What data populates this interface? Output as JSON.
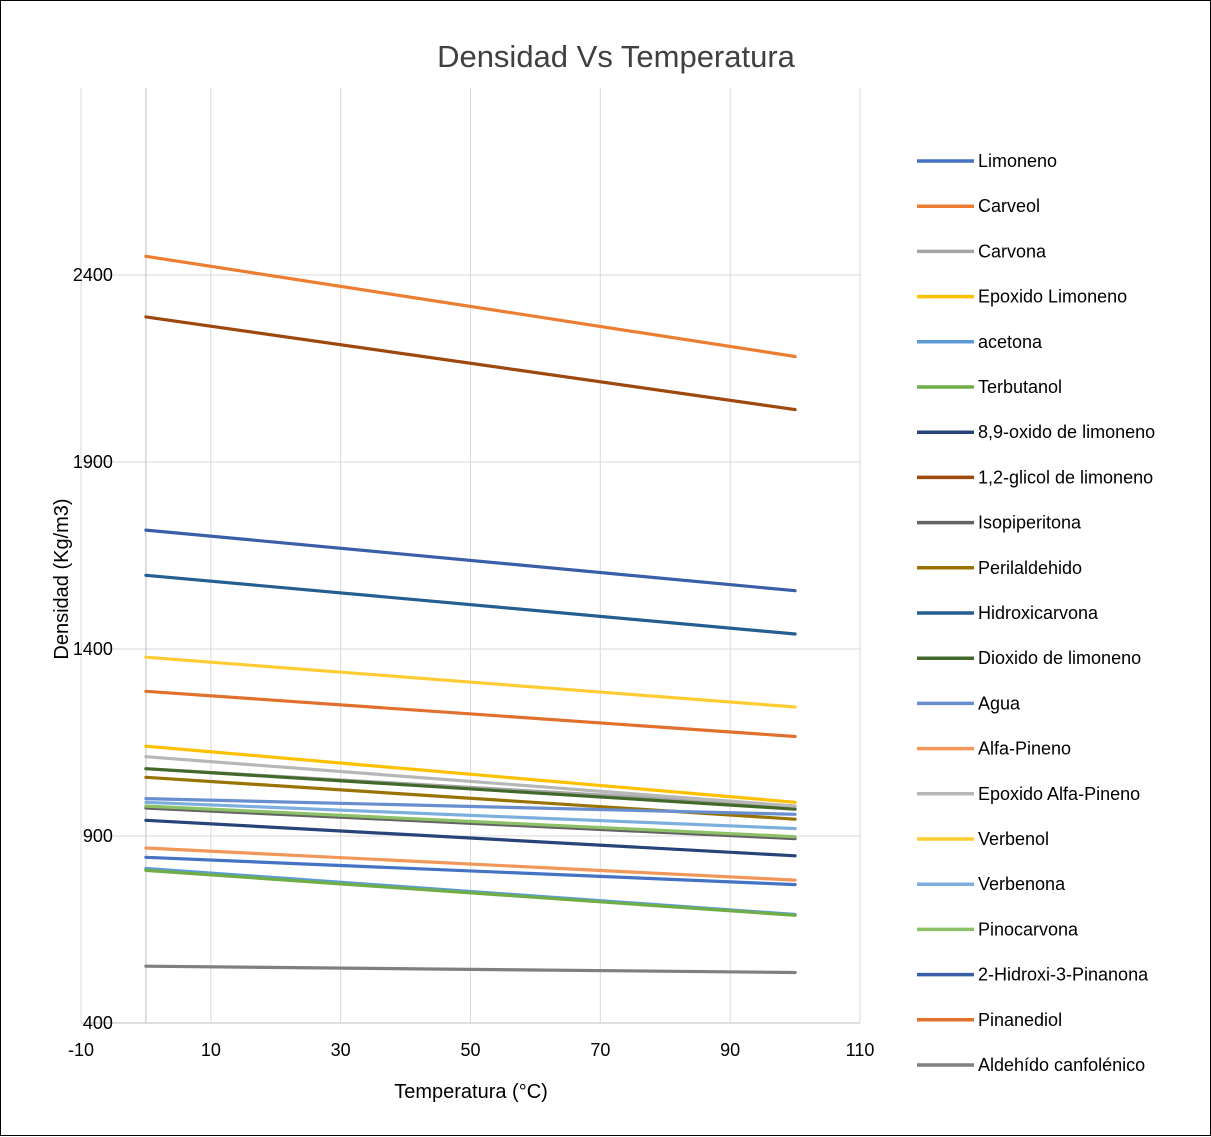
{
  "chart_data": {
    "type": "line",
    "title": "Densidad Vs Temperatura",
    "xlabel": "Temperatura (°C)",
    "ylabel": "Densidad (Kg/m3)",
    "xlim": [
      -10,
      110
    ],
    "ylim": [
      400,
      2900
    ],
    "xticks": [
      -10,
      10,
      30,
      50,
      70,
      90,
      110
    ],
    "yticks": [
      400,
      900,
      1400,
      1900,
      2400
    ],
    "grid": true,
    "legend": "right",
    "x": [
      0,
      100
    ],
    "series": [
      {
        "name": "Limoneno",
        "color": "#4472C4",
        "values": [
          843,
          770
        ]
      },
      {
        "name": "Carveol",
        "color": "#ED7D31",
        "values": [
          2450,
          2182
        ]
      },
      {
        "name": "Carvona",
        "color": "#A5A5A5",
        "values": [
          1080,
          980
        ]
      },
      {
        "name": "Epoxido Limoneno",
        "color": "#FFC000",
        "values": [
          1140,
          990
        ]
      },
      {
        "name": "acetona",
        "color": "#5B9BD5",
        "values": [
          813,
          690
        ]
      },
      {
        "name": "Terbutanol",
        "color": "#70AD47",
        "values": [
          808,
          688
        ]
      },
      {
        "name": "8,9-oxido de limoneno",
        "color": "#264478",
        "values": [
          942,
          847
        ]
      },
      {
        "name": "1,2-glicol de limoneno",
        "color": "#9E480E",
        "values": [
          2288,
          2040
        ]
      },
      {
        "name": "Isopiperitona",
        "color": "#636363",
        "values": [
          975,
          893
        ]
      },
      {
        "name": "Perilaldehido",
        "color": "#997300",
        "values": [
          1057,
          945
        ]
      },
      {
        "name": "Hidroxicarvona",
        "color": "#255E91",
        "values": [
          1597,
          1440
        ]
      },
      {
        "name": "Dioxido de limoneno",
        "color": "#43682B",
        "values": [
          1080,
          972
        ]
      },
      {
        "name": "Agua",
        "color": "#698ED0",
        "values": [
          1000,
          958
        ]
      },
      {
        "name": "Alfa-Pineno",
        "color": "#F1975A",
        "values": [
          868,
          782
        ]
      },
      {
        "name": "Epoxido Alfa-Pineno",
        "color": "#B7B7B7",
        "values": [
          1112,
          980
        ]
      },
      {
        "name": "Verbenol",
        "color": "#FFCD33",
        "values": [
          1378,
          1245
        ]
      },
      {
        "name": "Verbenona",
        "color": "#7CAFDD",
        "values": [
          990,
          920
        ]
      },
      {
        "name": "Pinocarvona",
        "color": "#8CC168",
        "values": [
          980,
          898
        ]
      },
      {
        "name": "2-Hidroxi-3-Pinanona",
        "color": "#3A5FA8",
        "values": [
          1718,
          1556
        ]
      },
      {
        "name": "Pinanediol",
        "color": "#E0702B",
        "values": [
          1287,
          1166
        ]
      },
      {
        "name": "Aldehído canfolénico",
        "color": "#7F7F7F",
        "values": [
          552,
          535
        ]
      }
    ]
  }
}
